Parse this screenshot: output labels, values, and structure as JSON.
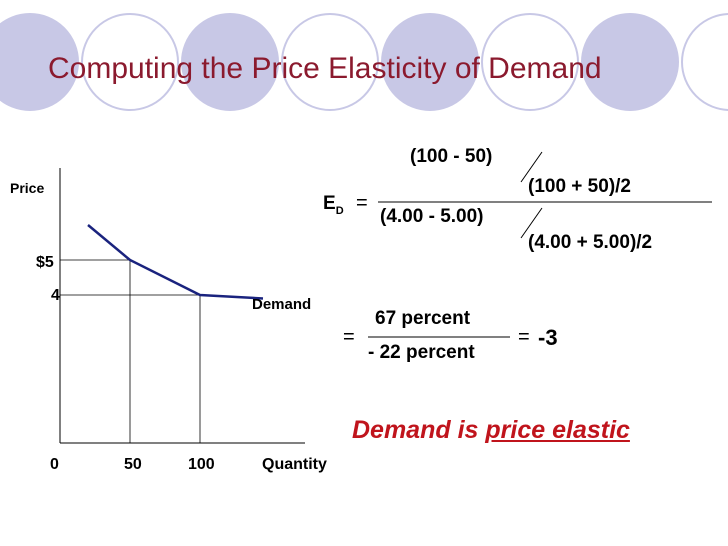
{
  "slide": {
    "title": "Computing the Price Elasticity of Demand",
    "conclusion_prefix": "Demand is",
    "conclusion_emphasis": "price elastic"
  },
  "formula": {
    "lhs": "E",
    "lhs_sub": "D",
    "equals": "=",
    "top_numerator": "(100 - 50)",
    "top_denominator": "(100 + 50)/2",
    "bottom_numerator": "(4.00 - 5.00)",
    "bottom_denominator": "(4.00 + 5.00)/2",
    "step_numerator": "67 percent",
    "step_denominator": "- 22 percent",
    "result": "-3"
  },
  "chart_data": {
    "type": "line",
    "ylabel": "Price",
    "xlabel": "Quantity",
    "x_ticks": [
      "0",
      "50",
      "100"
    ],
    "y_ticks": [
      "$5",
      "4"
    ],
    "series": [
      {
        "name": "Demand",
        "x": [
          20,
          50,
          100,
          145
        ],
        "y": [
          6.0,
          5.0,
          4.0,
          3.9
        ]
      }
    ],
    "reference_points": [
      {
        "x": 50,
        "y": 5
      },
      {
        "x": 100,
        "y": 4
      }
    ],
    "colors": {
      "curve": "#1a237e",
      "title": "#8b1a2e",
      "conclusion": "#c0141c",
      "circles": "#c8c8e6"
    }
  }
}
